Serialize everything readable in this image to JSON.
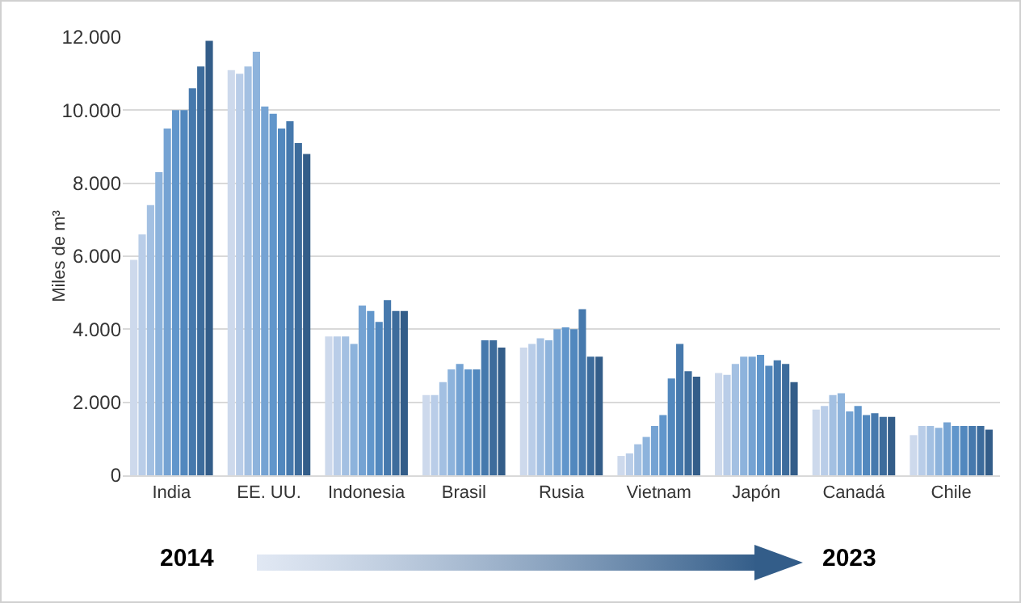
{
  "chart_data": {
    "type": "bar",
    "ylabel": "Miles de m³",
    "categories": [
      "India",
      "EE. UU.",
      "Indonesia",
      "Brasil",
      "Rusia",
      "Vietnam",
      "Japón",
      "Canadá",
      "Chile"
    ],
    "series": [
      {
        "color": "#cdd9ec",
        "values": [
          5900,
          11100,
          3800,
          2200,
          3500,
          530,
          2800,
          1800,
          1100
        ]
      },
      {
        "color": "#b9cde8",
        "values": [
          6600,
          11000,
          3800,
          2200,
          3600,
          600,
          2750,
          1900,
          1350
        ]
      },
      {
        "color": "#a3c0e2",
        "values": [
          7400,
          11200,
          3800,
          2550,
          3750,
          850,
          3050,
          2200,
          1350
        ]
      },
      {
        "color": "#8db3dc",
        "values": [
          8300,
          11600,
          3600,
          2900,
          3700,
          1050,
          3250,
          2250,
          1300
        ]
      },
      {
        "color": "#75a3d3",
        "values": [
          9500,
          10100,
          4650,
          3050,
          4000,
          1350,
          3250,
          1750,
          1450
        ]
      },
      {
        "color": "#6196cb",
        "values": [
          10000,
          9900,
          4500,
          2900,
          4050,
          1650,
          3300,
          1900,
          1350
        ]
      },
      {
        "color": "#5288be",
        "values": [
          10000,
          9500,
          4200,
          2900,
          4000,
          2650,
          3000,
          1650,
          1350
        ]
      },
      {
        "color": "#4679ad",
        "values": [
          10600,
          9700,
          4800,
          3700,
          4550,
          3600,
          3150,
          1700,
          1350
        ]
      },
      {
        "color": "#3d6c9c",
        "values": [
          11200,
          9100,
          4500,
          3700,
          3250,
          2850,
          3050,
          1600,
          1350
        ]
      },
      {
        "color": "#335d89",
        "values": [
          11900,
          8800,
          4500,
          3500,
          3250,
          2700,
          2550,
          1600,
          1250
        ]
      }
    ],
    "ylim": [
      0,
      12000
    ],
    "yticks": [
      {
        "value": 0,
        "label": "0"
      },
      {
        "value": 2000,
        "label": "2.000"
      },
      {
        "value": 4000,
        "label": "4.000"
      },
      {
        "value": 6000,
        "label": "6.000"
      },
      {
        "value": 8000,
        "label": "8.000"
      },
      {
        "value": 10000,
        "label": "10.000"
      },
      {
        "value": 12000,
        "label": "12.000"
      }
    ],
    "grid": "y",
    "annotations": [
      "2014",
      "2023"
    ]
  }
}
